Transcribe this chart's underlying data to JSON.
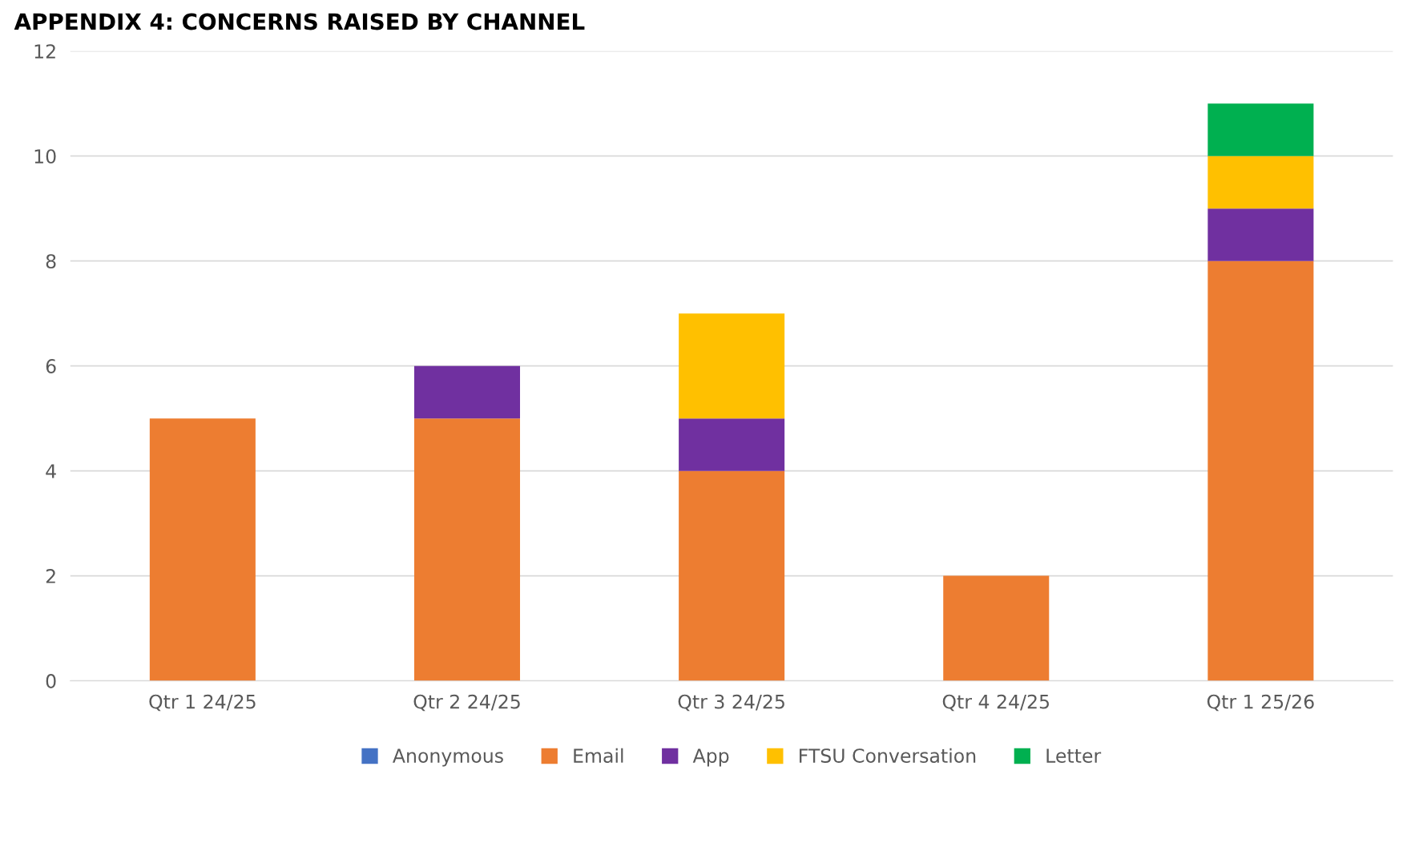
{
  "chart_data": {
    "type": "bar",
    "title": "APPENDIX 4: CONCERNS RAISED BY CHANNEL",
    "stacked": true,
    "categories": [
      "Qtr 1 24/25",
      "Qtr 2 24/25",
      "Qtr 3 24/25",
      "Qtr 4 24/25",
      "Qtr 1 25/26"
    ],
    "series": [
      {
        "name": "Anonymous",
        "color": "#4472c4",
        "values": [
          0,
          0,
          0,
          0,
          0
        ]
      },
      {
        "name": "Email",
        "color": "#ed7d31",
        "values": [
          5,
          5,
          4,
          2,
          8
        ]
      },
      {
        "name": "App",
        "color": "#7030a0",
        "values": [
          0,
          1,
          1,
          0,
          1
        ]
      },
      {
        "name": "FTSU Conversation",
        "color": "#ffc000",
        "values": [
          0,
          0,
          2,
          0,
          1
        ]
      },
      {
        "name": "Letter",
        "color": "#00b050",
        "values": [
          0,
          0,
          0,
          0,
          1
        ]
      }
    ],
    "ylim": [
      0,
      12
    ],
    "yticks": [
      0,
      2,
      4,
      6,
      8,
      10,
      12
    ],
    "grid": "y",
    "legend": "bottom"
  }
}
